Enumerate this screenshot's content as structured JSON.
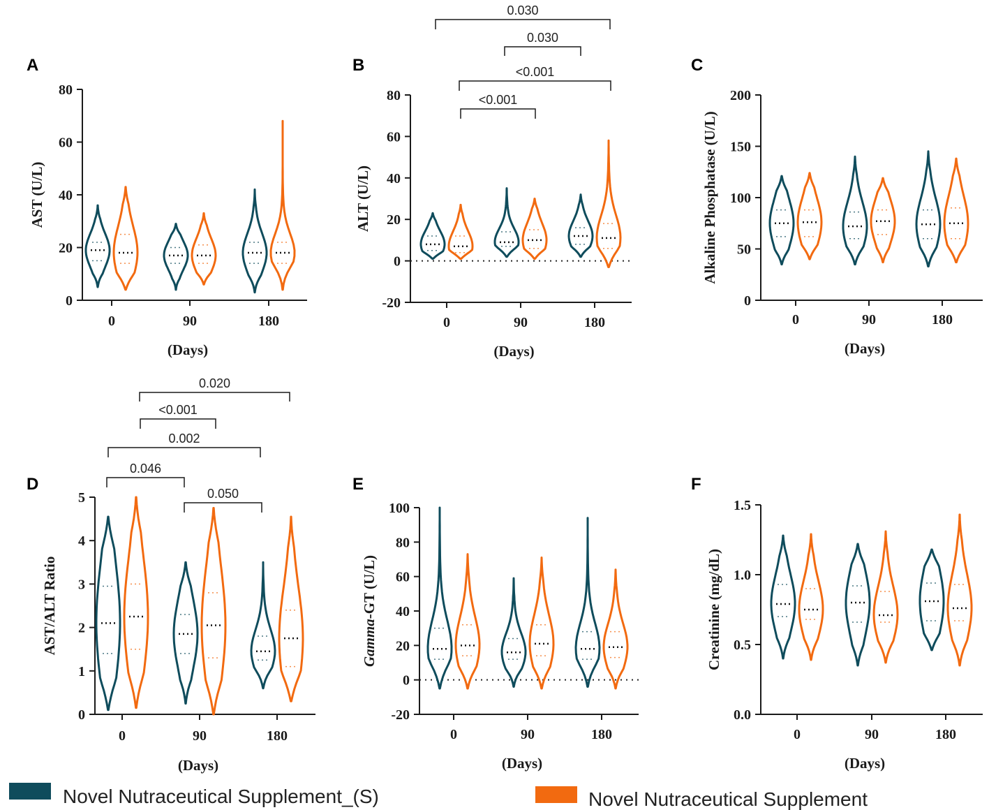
{
  "colors": {
    "series_s": "#0f4c5c",
    "series_n": "#f26a10"
  },
  "legend": [
    {
      "label": "Novel Nutraceutical Supplement_(S)",
      "color": "#0f4c5c"
    },
    {
      "label": "Novel Nutraceutical Supplement",
      "color": "#f26a10"
    }
  ],
  "chart_data": [
    {
      "panel": "A",
      "type": "violin",
      "ylabel": "AST (U/L)",
      "xlabel": "(Days)",
      "ylim": [
        0,
        80
      ],
      "yticks": [
        "0",
        "20",
        "40",
        "60",
        "80"
      ],
      "categories": [
        "0",
        "90",
        "180"
      ],
      "zero_line": false,
      "series": [
        {
          "name": "Novel Nutraceutical Supplement_(S)",
          "violins": [
            {
              "min": 5,
              "max": 36,
              "q1": 15,
              "median": 19,
              "q3": 22
            },
            {
              "min": 4,
              "max": 29,
              "q1": 14,
              "median": 17,
              "q3": 20
            },
            {
              "min": 3,
              "max": 42,
              "q1": 14,
              "median": 18,
              "q3": 22
            }
          ]
        },
        {
          "name": "Novel Nutraceutical Supplement",
          "violins": [
            {
              "min": 4,
              "max": 43,
              "q1": 14,
              "median": 18,
              "q3": 25
            },
            {
              "min": 6,
              "max": 33,
              "q1": 14,
              "median": 17,
              "q3": 21
            },
            {
              "min": 4,
              "max": 68,
              "q1": 14,
              "median": 18,
              "q3": 22
            }
          ]
        }
      ],
      "comparisons": []
    },
    {
      "panel": "B",
      "type": "violin",
      "ylabel": "ALT (U/L)",
      "xlabel": "(Days)",
      "ylim": [
        -20,
        80
      ],
      "yticks": [
        "-20",
        "0",
        "20",
        "40",
        "60",
        "80"
      ],
      "categories": [
        "0",
        "90",
        "180"
      ],
      "zero_line": true,
      "series": [
        {
          "name": "Novel Nutraceutical Supplement_(S)",
          "violins": [
            {
              "min": 1,
              "max": 23,
              "q1": 5,
              "median": 8,
              "q3": 12
            },
            {
              "min": 2,
              "max": 35,
              "q1": 7,
              "median": 9,
              "q3": 14
            },
            {
              "min": 2,
              "max": 32,
              "q1": 8,
              "median": 12,
              "q3": 16
            }
          ]
        },
        {
          "name": "Novel Nutraceutical Supplement",
          "violins": [
            {
              "min": 1,
              "max": 27,
              "q1": 4,
              "median": 7,
              "q3": 12
            },
            {
              "min": 1,
              "max": 30,
              "q1": 6,
              "median": 10,
              "q3": 15
            },
            {
              "min": -3,
              "max": 58,
              "q1": 6,
              "median": 11,
              "q3": 18
            }
          ]
        }
      ],
      "comparisons": [
        {
          "label": "0.030"
        },
        {
          "label": "0.030"
        },
        {
          "label": "<0.001"
        },
        {
          "label": "<0.001"
        }
      ]
    },
    {
      "panel": "C",
      "type": "violin",
      "ylabel": "Alkaline Phosphatase (U/L)",
      "xlabel": "(Days)",
      "ylim": [
        0,
        200
      ],
      "yticks": [
        "0",
        "50",
        "100",
        "150",
        "200"
      ],
      "categories": [
        "0",
        "90",
        "180"
      ],
      "zero_line": false,
      "series": [
        {
          "name": "Novel Nutraceutical Supplement_(S)",
          "violins": [
            {
              "min": 35,
              "max": 121,
              "q1": 62,
              "median": 75,
              "q3": 88
            },
            {
              "min": 35,
              "max": 140,
              "q1": 60,
              "median": 72,
              "q3": 86
            },
            {
              "min": 33,
              "max": 145,
              "q1": 60,
              "median": 74,
              "q3": 88
            }
          ]
        },
        {
          "name": "Novel Nutraceutical Supplement",
          "violins": [
            {
              "min": 40,
              "max": 124,
              "q1": 62,
              "median": 76,
              "q3": 88
            },
            {
              "min": 37,
              "max": 119,
              "q1": 64,
              "median": 77,
              "q3": 88
            },
            {
              "min": 37,
              "max": 138,
              "q1": 60,
              "median": 75,
              "q3": 90
            }
          ]
        }
      ],
      "comparisons": []
    },
    {
      "panel": "D",
      "type": "violin",
      "ylabel": "AST/ALT Ratio",
      "xlabel": "(Days)",
      "ylim": [
        0,
        5
      ],
      "yticks": [
        "0",
        "1",
        "2",
        "3",
        "4",
        "5"
      ],
      "categories": [
        "0",
        "90",
        "180"
      ],
      "zero_line": false,
      "series": [
        {
          "name": "Novel Nutraceutical Supplement_(S)",
          "violins": [
            {
              "min": 0.1,
              "max": 4.55,
              "q1": 1.4,
              "median": 2.1,
              "q3": 2.95
            },
            {
              "min": 0.25,
              "max": 3.5,
              "q1": 1.4,
              "median": 1.85,
              "q3": 2.3
            },
            {
              "min": 0.6,
              "max": 3.5,
              "q1": 1.25,
              "median": 1.45,
              "q3": 1.8
            }
          ]
        },
        {
          "name": "Novel Nutraceutical Supplement",
          "violins": [
            {
              "min": 0.15,
              "max": 5.0,
              "q1": 1.5,
              "median": 2.25,
              "q3": 3.0
            },
            {
              "min": 0.0,
              "max": 4.75,
              "q1": 1.3,
              "median": 2.05,
              "q3": 2.8
            },
            {
              "min": 0.3,
              "max": 4.55,
              "q1": 1.1,
              "median": 1.75,
              "q3": 2.4
            }
          ]
        }
      ],
      "comparisons": [
        {
          "label": "0.020"
        },
        {
          "label": "<0.001"
        },
        {
          "label": "0.002"
        },
        {
          "label": "0.046"
        },
        {
          "label": "0.050"
        }
      ]
    },
    {
      "panel": "E",
      "type": "violin",
      "ylabel_italic": "Gamma",
      "ylabel": "-GT (U/L)",
      "xlabel": "(Days)",
      "ylim": [
        -20,
        100
      ],
      "yticks": [
        "-20",
        "0",
        "20",
        "40",
        "60",
        "80",
        "100"
      ],
      "categories": [
        "0",
        "90",
        "180"
      ],
      "zero_line": true,
      "series": [
        {
          "name": "Novel Nutraceutical Supplement_(S)",
          "violins": [
            {
              "min": -5,
              "max": 100,
              "q1": 12,
              "median": 18,
              "q3": 30
            },
            {
              "min": -4,
              "max": 59,
              "q1": 12,
              "median": 16,
              "q3": 24
            },
            {
              "min": -4,
              "max": 94,
              "q1": 12,
              "median": 18,
              "q3": 28
            }
          ]
        },
        {
          "name": "Novel Nutraceutical Supplement",
          "violins": [
            {
              "min": -5,
              "max": 73,
              "q1": 14,
              "median": 20,
              "q3": 32
            },
            {
              "min": -5,
              "max": 71,
              "q1": 14,
              "median": 21,
              "q3": 32
            },
            {
              "min": -5,
              "max": 64,
              "q1": 13,
              "median": 19,
              "q3": 28
            }
          ]
        }
      ],
      "comparisons": []
    },
    {
      "panel": "F",
      "type": "violin",
      "ylabel": "Creatinine (mg/dL)",
      "xlabel": "(Days)",
      "ylim": [
        0,
        1.5
      ],
      "yticks": [
        "0.0",
        "0.5",
        "1.0",
        "1.5"
      ],
      "categories": [
        "0",
        "90",
        "180"
      ],
      "zero_line": false,
      "series": [
        {
          "name": "Novel Nutraceutical Supplement_(S)",
          "violins": [
            {
              "min": 0.4,
              "max": 1.28,
              "q1": 0.7,
              "median": 0.79,
              "q3": 0.93
            },
            {
              "min": 0.35,
              "max": 1.22,
              "q1": 0.66,
              "median": 0.8,
              "q3": 0.92
            },
            {
              "min": 0.46,
              "max": 1.18,
              "q1": 0.67,
              "median": 0.81,
              "q3": 0.94
            }
          ]
        },
        {
          "name": "Novel Nutraceutical Supplement",
          "violins": [
            {
              "min": 0.39,
              "max": 1.29,
              "q1": 0.68,
              "median": 0.75,
              "q3": 0.9
            },
            {
              "min": 0.37,
              "max": 1.31,
              "q1": 0.66,
              "median": 0.71,
              "q3": 0.88
            },
            {
              "min": 0.35,
              "max": 1.43,
              "q1": 0.67,
              "median": 0.76,
              "q3": 0.93
            }
          ]
        }
      ],
      "comparisons": []
    }
  ]
}
